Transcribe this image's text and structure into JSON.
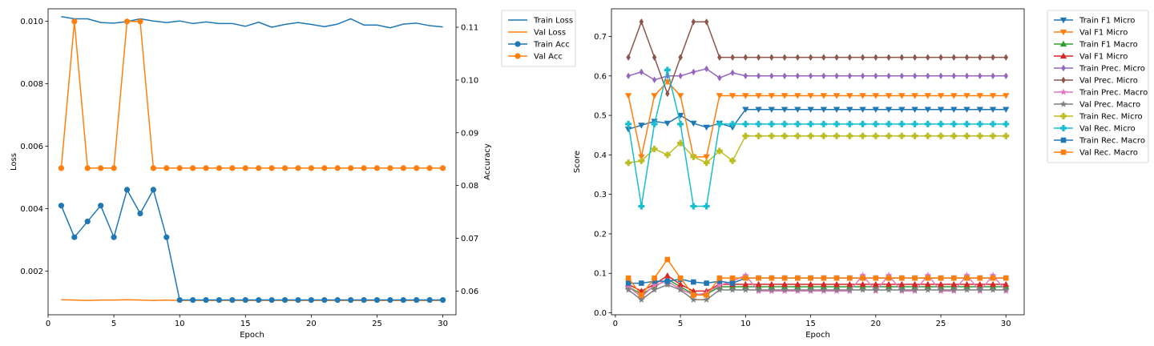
{
  "chart_data": [
    {
      "type": "line",
      "name": "loss-accuracy",
      "xlabel": "Epoch",
      "ylabel": "Loss",
      "y2label": "Accuracy",
      "x": [
        1,
        2,
        3,
        4,
        5,
        6,
        7,
        8,
        9,
        10,
        11,
        12,
        13,
        14,
        15,
        16,
        17,
        18,
        19,
        20,
        21,
        22,
        23,
        24,
        25,
        26,
        27,
        28,
        29,
        30
      ],
      "xlim": [
        0.0,
        31.0
      ],
      "ylim": [
        0.0006,
        0.0104
      ],
      "y2lim": [
        0.0555,
        0.1135
      ],
      "xticks": [
        0,
        5,
        10,
        15,
        20,
        25,
        30
      ],
      "yticks": [
        0.002,
        0.004,
        0.006,
        0.008,
        0.01
      ],
      "ytick_labels": [
        "0.002",
        "0.004",
        "0.006",
        "0.008",
        "0.010"
      ],
      "y2ticks": [
        0.06,
        0.07,
        0.08,
        0.09,
        0.1,
        0.11
      ],
      "y2tick_labels": [
        "0.06",
        "0.07",
        "0.08",
        "0.09",
        "0.10",
        "0.11"
      ],
      "legend_position": "outside-top-right",
      "series": [
        {
          "name": "Train Loss",
          "axis": "left",
          "color": "#1f77b4",
          "marker": "none",
          "values": [
            0.01015,
            0.01008,
            0.01008,
            0.00996,
            0.00994,
            0.00999,
            0.01008,
            0.01001,
            0.00996,
            0.01001,
            0.00993,
            0.00998,
            0.00993,
            0.00993,
            0.00984,
            0.00997,
            0.00981,
            0.0099,
            0.00996,
            0.0099,
            0.00983,
            0.00991,
            0.01008,
            0.00988,
            0.00988,
            0.00979,
            0.00991,
            0.00994,
            0.00986,
            0.00982
          ]
        },
        {
          "name": "Val Loss",
          "axis": "left",
          "color": "#ff7f0e",
          "marker": "none",
          "values": [
            0.00108,
            0.00107,
            0.00106,
            0.00107,
            0.00107,
            0.00108,
            0.00107,
            0.00106,
            0.00107,
            0.00106,
            0.00106,
            0.00106,
            0.00106,
            0.00106,
            0.00106,
            0.00106,
            0.00106,
            0.00106,
            0.00106,
            0.00106,
            0.00106,
            0.00106,
            0.00106,
            0.00106,
            0.00106,
            0.00106,
            0.00106,
            0.00106,
            0.00106,
            0.00106
          ]
        },
        {
          "name": "Train Acc",
          "axis": "right",
          "color": "#1f77b4",
          "marker": "circle",
          "values": [
            0.0762,
            0.0702,
            0.0732,
            0.0762,
            0.0702,
            0.0792,
            0.0747,
            0.0792,
            0.0702,
            0.0583,
            0.0583,
            0.0583,
            0.0583,
            0.0583,
            0.0583,
            0.0583,
            0.0583,
            0.0583,
            0.0583,
            0.0583,
            0.0583,
            0.0583,
            0.0583,
            0.0583,
            0.0583,
            0.0583,
            0.0583,
            0.0583,
            0.0583,
            0.0583
          ]
        },
        {
          "name": "Val Acc",
          "axis": "right",
          "color": "#ff7f0e",
          "marker": "circle",
          "values": [
            0.0833,
            0.1111,
            0.0833,
            0.0833,
            0.0833,
            0.1111,
            0.1111,
            0.0833,
            0.0833,
            0.0833,
            0.0833,
            0.0833,
            0.0833,
            0.0833,
            0.0833,
            0.0833,
            0.0833,
            0.0833,
            0.0833,
            0.0833,
            0.0833,
            0.0833,
            0.0833,
            0.0833,
            0.0833,
            0.0833,
            0.0833,
            0.0833,
            0.0833,
            0.0833
          ]
        }
      ]
    },
    {
      "type": "line",
      "name": "scores",
      "xlabel": "Epoch",
      "ylabel": "Score",
      "x": [
        1,
        2,
        3,
        4,
        5,
        6,
        7,
        8,
        9,
        10,
        11,
        12,
        13,
        14,
        15,
        16,
        17,
        18,
        19,
        20,
        21,
        22,
        23,
        24,
        25,
        26,
        27,
        28,
        29,
        30
      ],
      "xlim": [
        -0.3,
        31.4
      ],
      "ylim": [
        -0.005,
        0.77
      ],
      "xticks": [
        0,
        5,
        10,
        15,
        20,
        25,
        30
      ],
      "yticks": [
        0.0,
        0.1,
        0.2,
        0.3,
        0.4,
        0.5,
        0.6,
        0.7
      ],
      "ytick_labels": [
        "0.0",
        "0.1",
        "0.2",
        "0.3",
        "0.4",
        "0.5",
        "0.6",
        "0.7"
      ],
      "legend_position": "outside-top-right",
      "series": [
        {
          "name": "Train F1 Micro",
          "color": "#1f77b4",
          "marker": "tri-down",
          "values": [
            0.465,
            0.475,
            0.485,
            0.48,
            0.5,
            0.48,
            0.47,
            0.48,
            0.47,
            0.515,
            0.515,
            0.515,
            0.515,
            0.515,
            0.515,
            0.515,
            0.515,
            0.515,
            0.515,
            0.515,
            0.515,
            0.515,
            0.515,
            0.515,
            0.515,
            0.515,
            0.515,
            0.515,
            0.515,
            0.515
          ]
        },
        {
          "name": "Val F1 Micro",
          "color": "#ff7f0e",
          "marker": "tri-down",
          "values": [
            0.55,
            0.395,
            0.55,
            0.585,
            0.55,
            0.395,
            0.395,
            0.55,
            0.55,
            0.55,
            0.55,
            0.55,
            0.55,
            0.55,
            0.55,
            0.55,
            0.55,
            0.55,
            0.55,
            0.55,
            0.55,
            0.55,
            0.55,
            0.55,
            0.55,
            0.55,
            0.55,
            0.55,
            0.55,
            0.55
          ]
        },
        {
          "name": "Train F1 Macro",
          "color": "#2ca02c",
          "marker": "tri-up",
          "values": [
            0.066,
            0.047,
            0.066,
            0.085,
            0.066,
            0.047,
            0.047,
            0.066,
            0.066,
            0.066,
            0.066,
            0.066,
            0.066,
            0.066,
            0.066,
            0.066,
            0.066,
            0.066,
            0.066,
            0.066,
            0.066,
            0.066,
            0.066,
            0.066,
            0.066,
            0.066,
            0.066,
            0.066,
            0.066,
            0.066
          ]
        },
        {
          "name": "Val F1 Micro",
          "color": "#d62728",
          "marker": "tri-up",
          "values": [
            0.072,
            0.055,
            0.072,
            0.094,
            0.072,
            0.055,
            0.055,
            0.072,
            0.072,
            0.072,
            0.072,
            0.072,
            0.072,
            0.072,
            0.072,
            0.072,
            0.072,
            0.072,
            0.072,
            0.072,
            0.072,
            0.072,
            0.072,
            0.072,
            0.072,
            0.072,
            0.072,
            0.072,
            0.072,
            0.072
          ]
        },
        {
          "name": "Train Prec. Micro",
          "color": "#9467bd",
          "marker": "thin-diamond",
          "values": [
            0.6,
            0.61,
            0.59,
            0.6,
            0.6,
            0.61,
            0.618,
            0.595,
            0.608,
            0.6,
            0.6,
            0.6,
            0.6,
            0.6,
            0.6,
            0.6,
            0.6,
            0.6,
            0.6,
            0.6,
            0.6,
            0.6,
            0.6,
            0.6,
            0.6,
            0.6,
            0.6,
            0.6,
            0.6,
            0.6
          ]
        },
        {
          "name": "Val Prec. Micro",
          "color": "#8c564b",
          "marker": "thin-diamond",
          "values": [
            0.647,
            0.737,
            0.647,
            0.555,
            0.647,
            0.737,
            0.737,
            0.647,
            0.647,
            0.647,
            0.647,
            0.647,
            0.647,
            0.647,
            0.647,
            0.647,
            0.647,
            0.647,
            0.647,
            0.647,
            0.647,
            0.647,
            0.647,
            0.647,
            0.647,
            0.647,
            0.647,
            0.647,
            0.647,
            0.647
          ]
        },
        {
          "name": "Train Prec. Macro",
          "color": "#e377c2",
          "marker": "star",
          "values": [
            0.066,
            0.04,
            0.07,
            0.08,
            0.06,
            0.045,
            0.05,
            0.07,
            0.08,
            0.095,
            0.055,
            0.055,
            0.055,
            0.055,
            0.055,
            0.055,
            0.055,
            0.055,
            0.095,
            0.055,
            0.095,
            0.055,
            0.055,
            0.095,
            0.055,
            0.055,
            0.095,
            0.055,
            0.095,
            0.055
          ]
        },
        {
          "name": "Val Prec. Macro",
          "color": "#7f7f7f",
          "marker": "star",
          "values": [
            0.058,
            0.033,
            0.058,
            0.071,
            0.058,
            0.033,
            0.033,
            0.058,
            0.058,
            0.058,
            0.058,
            0.058,
            0.058,
            0.058,
            0.058,
            0.058,
            0.058,
            0.058,
            0.058,
            0.058,
            0.058,
            0.058,
            0.058,
            0.058,
            0.058,
            0.058,
            0.058,
            0.058,
            0.058,
            0.058
          ]
        },
        {
          "name": "Train Rec. Micro",
          "color": "#bcbd22",
          "marker": "plus",
          "values": [
            0.38,
            0.385,
            0.415,
            0.4,
            0.43,
            0.395,
            0.38,
            0.41,
            0.385,
            0.448,
            0.448,
            0.448,
            0.448,
            0.448,
            0.448,
            0.448,
            0.448,
            0.448,
            0.448,
            0.448,
            0.448,
            0.448,
            0.448,
            0.448,
            0.448,
            0.448,
            0.448,
            0.448,
            0.448,
            0.448
          ]
        },
        {
          "name": "Val Rec. Micro",
          "color": "#17becf",
          "marker": "plus",
          "values": [
            0.478,
            0.27,
            0.478,
            0.615,
            0.478,
            0.27,
            0.27,
            0.478,
            0.478,
            0.478,
            0.478,
            0.478,
            0.478,
            0.478,
            0.478,
            0.478,
            0.478,
            0.478,
            0.478,
            0.478,
            0.478,
            0.478,
            0.478,
            0.478,
            0.478,
            0.478,
            0.478,
            0.478,
            0.478,
            0.478
          ]
        },
        {
          "name": "Train Rec. Macro",
          "color": "#1f77b4",
          "marker": "square",
          "values": [
            0.075,
            0.075,
            0.08,
            0.08,
            0.085,
            0.078,
            0.075,
            0.08,
            0.075,
            0.088,
            0.088,
            0.088,
            0.088,
            0.088,
            0.088,
            0.088,
            0.088,
            0.088,
            0.088,
            0.088,
            0.088,
            0.088,
            0.088,
            0.088,
            0.088,
            0.088,
            0.088,
            0.088,
            0.088,
            0.088
          ]
        },
        {
          "name": "Val Rec. Macro",
          "color": "#ff7f0e",
          "marker": "square",
          "values": [
            0.088,
            0.045,
            0.088,
            0.135,
            0.088,
            0.045,
            0.045,
            0.088,
            0.088,
            0.088,
            0.088,
            0.088,
            0.088,
            0.088,
            0.088,
            0.088,
            0.088,
            0.088,
            0.088,
            0.088,
            0.088,
            0.088,
            0.088,
            0.088,
            0.088,
            0.088,
            0.088,
            0.088,
            0.088,
            0.088
          ]
        }
      ]
    }
  ]
}
